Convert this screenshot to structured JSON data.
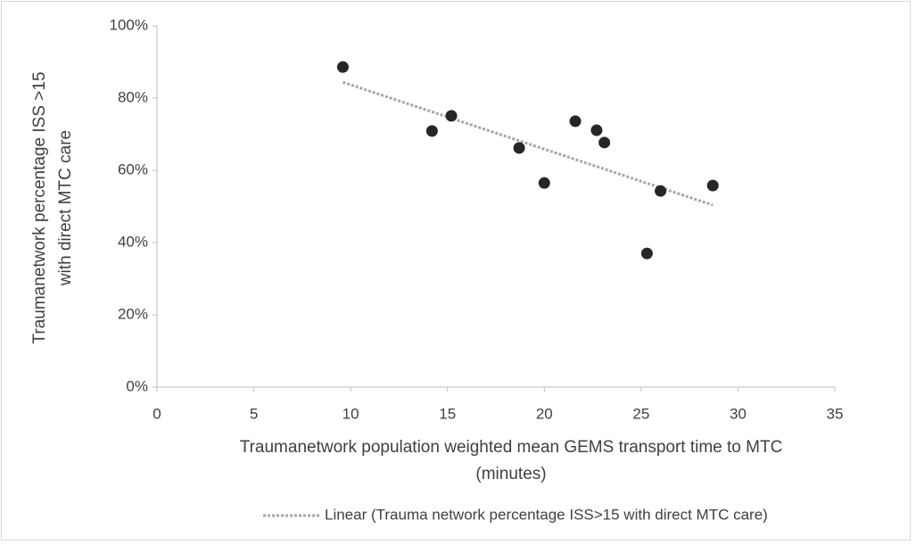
{
  "chart_data": {
    "type": "scatter",
    "x_label_lines": [
      "Traumanetwork population weighted mean GEMS transport time to MTC",
      "(minutes)"
    ],
    "y_label_lines": [
      "Traumanetwork percentage ISS >15",
      "with direct MTC care"
    ],
    "series": [
      {
        "color": "#262626",
        "x": [
          9.6,
          14.2,
          15.2,
          18.7,
          20.0,
          21.6,
          22.7,
          23.1,
          25.3,
          26.0,
          28.7
        ],
        "values": [
          88.6,
          70.9,
          75.1,
          66.2,
          56.5,
          73.6,
          71.1,
          67.7,
          37.0,
          54.3,
          55.8
        ]
      }
    ],
    "trendline": {
      "name": "Linear (Trauma network percentage ISS>15 with direct MTC care)",
      "color": "#a6a6a6",
      "x": [
        9.6,
        28.7
      ],
      "values": [
        84.4,
        50.4
      ]
    },
    "xlim": [
      0,
      35
    ],
    "xticks": [
      0,
      5,
      10,
      15,
      20,
      25,
      30,
      35
    ],
    "ylim": [
      0,
      100
    ],
    "yticks": [
      {
        "value": 0,
        "label": "0%"
      },
      {
        "value": 20,
        "label": "20%"
      },
      {
        "value": 40,
        "label": "40%"
      },
      {
        "value": 60,
        "label": "60%"
      },
      {
        "value": 80,
        "label": "80%"
      },
      {
        "value": 100,
        "label": "100%"
      }
    ],
    "grid": false,
    "legend": "bottom"
  }
}
